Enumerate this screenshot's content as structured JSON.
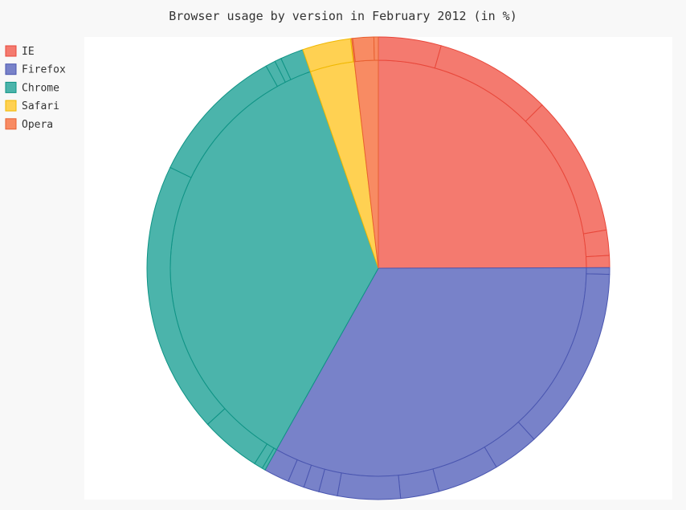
{
  "chart_data": {
    "type": "pie",
    "title": "Browser usage by version in February 2012 (in %)",
    "legend_position": "top-left",
    "series": [
      {
        "name": "IE",
        "color": "#f47a6f",
        "stroke": "#e8473a",
        "values": [
          5.7,
          10.6,
          12.8,
          2.3,
          1.1
        ]
      },
      {
        "name": "Firefox",
        "color": "#7882c9",
        "stroke": "#4a56b0",
        "values": [
          0.6,
          16.7,
          4.2,
          5.6,
          3.5,
          5.7,
          1.7,
          1.4,
          1.5,
          2.3
        ]
      },
      {
        "name": "Chrome",
        "color": "#4bb4ab",
        "stroke": "#0f9385",
        "values": [
          0.3,
          0.8,
          5.5,
          24.7,
          12.7,
          0.9,
          0.6,
          2.1
        ]
      },
      {
        "name": "Safari",
        "color": "#ffd152",
        "stroke": "#f0b800",
        "values": [
          4.4,
          0.1
        ]
      },
      {
        "name": "Opera",
        "color": "#f88b63",
        "stroke": "#e85f30",
        "values": [
          0.1,
          1.9,
          0.4
        ]
      }
    ]
  }
}
